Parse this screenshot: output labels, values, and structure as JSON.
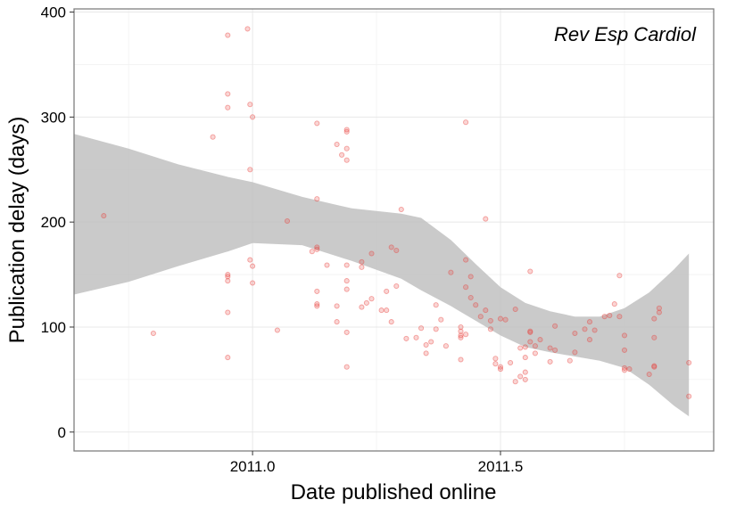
{
  "chart_data": {
    "type": "scatter",
    "title": "",
    "xlabel": "Date published online",
    "ylabel": "Publication delay (days)",
    "annotation": "Rev Esp Cardiol",
    "xlim": [
      2010.64,
      2011.93
    ],
    "ylim": [
      -18,
      403
    ],
    "x_ticks": [
      2011.0,
      2011.5
    ],
    "x_tick_labels": [
      "2011.0",
      "2011.5"
    ],
    "y_ticks": [
      0,
      100,
      200,
      300,
      400
    ],
    "y_tick_labels": [
      "0",
      "100",
      "200",
      "300",
      "400"
    ],
    "grid": true,
    "point_color": "#e8413c",
    "band_color": "#bdbdbd",
    "points": [
      [
        2010.7,
        206
      ],
      [
        2010.8,
        94
      ],
      [
        2010.92,
        281
      ],
      [
        2010.95,
        378
      ],
      [
        2010.95,
        322
      ],
      [
        2010.95,
        309
      ],
      [
        2010.95,
        150
      ],
      [
        2010.95,
        148
      ],
      [
        2010.95,
        144
      ],
      [
        2010.95,
        114
      ],
      [
        2010.95,
        71
      ],
      [
        2010.99,
        384
      ],
      [
        2010.995,
        312
      ],
      [
        2010.995,
        250
      ],
      [
        2010.995,
        164
      ],
      [
        2011.0,
        158
      ],
      [
        2011.0,
        300
      ],
      [
        2011.0,
        142
      ],
      [
        2011.05,
        97
      ],
      [
        2011.07,
        201
      ],
      [
        2011.12,
        172
      ],
      [
        2011.13,
        294
      ],
      [
        2011.13,
        222
      ],
      [
        2011.13,
        176
      ],
      [
        2011.13,
        174
      ],
      [
        2011.13,
        134
      ],
      [
        2011.13,
        122
      ],
      [
        2011.13,
        120
      ],
      [
        2011.15,
        159
      ],
      [
        2011.17,
        274
      ],
      [
        2011.17,
        105
      ],
      [
        2011.17,
        120
      ],
      [
        2011.18,
        264
      ],
      [
        2011.19,
        288
      ],
      [
        2011.19,
        286
      ],
      [
        2011.19,
        270
      ],
      [
        2011.19,
        259
      ],
      [
        2011.19,
        159
      ],
      [
        2011.19,
        144
      ],
      [
        2011.19,
        136
      ],
      [
        2011.19,
        95
      ],
      [
        2011.19,
        62
      ],
      [
        2011.22,
        162
      ],
      [
        2011.22,
        157
      ],
      [
        2011.22,
        119
      ],
      [
        2011.23,
        123
      ],
      [
        2011.24,
        170
      ],
      [
        2011.24,
        127
      ],
      [
        2011.26,
        116
      ],
      [
        2011.27,
        134
      ],
      [
        2011.27,
        116
      ],
      [
        2011.28,
        176
      ],
      [
        2011.28,
        105
      ],
      [
        2011.29,
        173
      ],
      [
        2011.29,
        139
      ],
      [
        2011.3,
        212
      ],
      [
        2011.31,
        89
      ],
      [
        2011.33,
        90
      ],
      [
        2011.34,
        99
      ],
      [
        2011.35,
        75
      ],
      [
        2011.35,
        83
      ],
      [
        2011.36,
        86
      ],
      [
        2011.37,
        98
      ],
      [
        2011.37,
        121
      ],
      [
        2011.38,
        107
      ],
      [
        2011.39,
        82
      ],
      [
        2011.4,
        152
      ],
      [
        2011.42,
        100
      ],
      [
        2011.42,
        96
      ],
      [
        2011.42,
        92
      ],
      [
        2011.42,
        90
      ],
      [
        2011.42,
        69
      ],
      [
        2011.43,
        295
      ],
      [
        2011.43,
        164
      ],
      [
        2011.43,
        138
      ],
      [
        2011.43,
        93
      ],
      [
        2011.44,
        148
      ],
      [
        2011.44,
        128
      ],
      [
        2011.45,
        121
      ],
      [
        2011.46,
        110
      ],
      [
        2011.47,
        203
      ],
      [
        2011.47,
        116
      ],
      [
        2011.48,
        106
      ],
      [
        2011.48,
        98
      ],
      [
        2011.49,
        70
      ],
      [
        2011.49,
        65
      ],
      [
        2011.5,
        62
      ],
      [
        2011.5,
        60
      ],
      [
        2011.5,
        108
      ],
      [
        2011.51,
        107
      ],
      [
        2011.52,
        66
      ],
      [
        2011.53,
        48
      ],
      [
        2011.53,
        117
      ],
      [
        2011.54,
        53
      ],
      [
        2011.54,
        80
      ],
      [
        2011.55,
        50
      ],
      [
        2011.55,
        57
      ],
      [
        2011.55,
        71
      ],
      [
        2011.55,
        81
      ],
      [
        2011.56,
        95
      ],
      [
        2011.56,
        96
      ],
      [
        2011.56,
        86
      ],
      [
        2011.56,
        153
      ],
      [
        2011.57,
        82
      ],
      [
        2011.57,
        75
      ],
      [
        2011.58,
        88
      ],
      [
        2011.6,
        80
      ],
      [
        2011.6,
        67
      ],
      [
        2011.61,
        78
      ],
      [
        2011.61,
        101
      ],
      [
        2011.64,
        68
      ],
      [
        2011.65,
        94
      ],
      [
        2011.65,
        76
      ],
      [
        2011.67,
        98
      ],
      [
        2011.68,
        105
      ],
      [
        2011.68,
        88
      ],
      [
        2011.69,
        97
      ],
      [
        2011.71,
        110
      ],
      [
        2011.72,
        111
      ],
      [
        2011.73,
        122
      ],
      [
        2011.74,
        149
      ],
      [
        2011.74,
        110
      ],
      [
        2011.75,
        92
      ],
      [
        2011.75,
        78
      ],
      [
        2011.75,
        61
      ],
      [
        2011.75,
        59
      ],
      [
        2011.76,
        60
      ],
      [
        2011.8,
        55
      ],
      [
        2011.81,
        108
      ],
      [
        2011.81,
        90
      ],
      [
        2011.81,
        62
      ],
      [
        2011.81,
        63
      ],
      [
        2011.82,
        114
      ],
      [
        2011.82,
        118
      ],
      [
        2011.88,
        34
      ],
      [
        2011.88,
        66
      ]
    ],
    "ci_band": {
      "x": [
        2010.64,
        2010.75,
        2010.85,
        2010.95,
        2011.0,
        2011.1,
        2011.2,
        2011.3,
        2011.34,
        2011.4,
        2011.45,
        2011.5,
        2011.55,
        2011.6,
        2011.65,
        2011.7,
        2011.75,
        2011.8,
        2011.85,
        2011.88
      ],
      "upper": [
        284,
        270,
        255,
        243,
        238,
        224,
        213,
        208,
        204,
        183,
        160,
        138,
        123,
        115,
        110,
        110,
        118,
        133,
        155,
        170
      ],
      "lower": [
        131,
        143,
        158,
        172,
        180,
        178,
        163,
        146,
        135,
        120,
        106,
        92,
        81,
        76,
        72,
        68,
        61,
        45,
        25,
        15
      ]
    }
  }
}
